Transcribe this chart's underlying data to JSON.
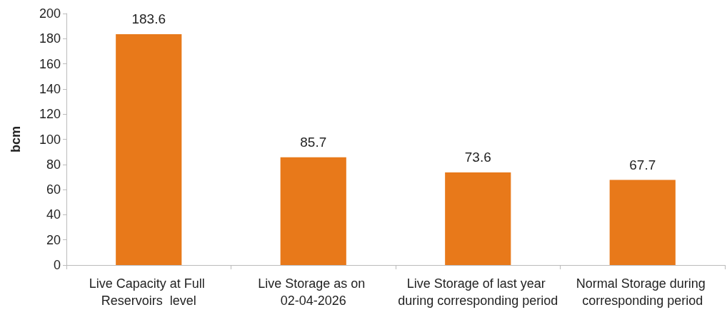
{
  "chart_data": {
    "type": "bar",
    "ylabel": "bcm",
    "categories": [
      "Live Capacity at Full Reservoirs  level",
      "Live Storage as on 02-04-2026",
      "Live Storage of last year during corresponding period",
      "Normal Storage during corresponding period"
    ],
    "values": [
      183.6,
      85.7,
      73.6,
      67.7
    ],
    "color": "#e8791a",
    "ylim": [
      0,
      200
    ],
    "yticks": [
      0,
      20,
      40,
      60,
      80,
      100,
      120,
      140,
      160,
      180,
      200
    ],
    "grid": false,
    "data_labels": true
  }
}
